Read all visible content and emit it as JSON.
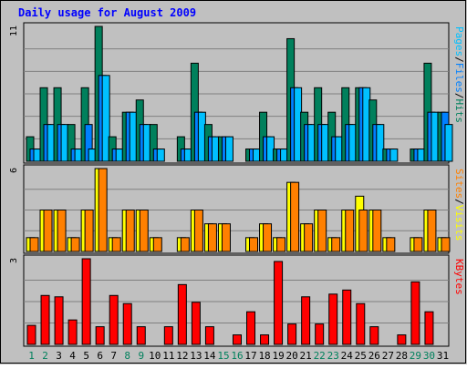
{
  "chart_data": {
    "type": "bar",
    "title": "Daily usage for August 2009",
    "x_tick_labels": [
      "1",
      "2",
      "3",
      "4",
      "5",
      "6",
      "7",
      "8",
      "9",
      "10",
      "11",
      "12",
      "13",
      "14",
      "15",
      "16",
      "17",
      "18",
      "19",
      "20",
      "21",
      "22",
      "23",
      "24",
      "25",
      "26",
      "27",
      "28",
      "29",
      "30",
      "31"
    ],
    "weekend_days": [
      1,
      2,
      8,
      9,
      15,
      16,
      22,
      23,
      29,
      30
    ],
    "colors": {
      "title": "#0000ff",
      "background": "#c0c0c0",
      "grid": "#808080",
      "hits": "#00805c",
      "files": "#0080ff",
      "pages": "#00c0ff",
      "visits": "#ffff00",
      "sites": "#ff8000",
      "kbytes": "#ff0000",
      "weekday_label": "#000000",
      "weekend_label": "#00805c"
    },
    "panels": [
      {
        "name": "hits-files-pages",
        "ymax_label": "11",
        "ylim": [
          0,
          11
        ],
        "legend": [
          "Pages",
          "Files",
          "Hits"
        ],
        "series": [
          {
            "name": "Hits",
            "values": [
              2,
              6,
              6,
              3,
              6,
              11,
              2,
              4,
              5,
              3,
              0,
              2,
              8,
              3,
              2,
              0,
              1,
              4,
              1,
              10,
              4,
              6,
              4,
              6,
              6,
              5,
              1,
              0,
              1,
              8,
              4
            ]
          },
          {
            "name": "Files",
            "values": [
              1,
              3,
              3,
              1,
              3,
              7,
              1,
              4,
              3,
              1,
              0,
              1,
              4,
              2,
              2,
              0,
              1,
              2,
              1,
              6,
              3,
              3,
              2,
              3,
              6,
              3,
              1,
              0,
              1,
              4,
              4
            ]
          },
          {
            "name": "Pages",
            "values": [
              1,
              3,
              3,
              1,
              1,
              7,
              1,
              4,
              3,
              1,
              0,
              1,
              4,
              2,
              2,
              0,
              1,
              2,
              1,
              6,
              3,
              3,
              2,
              3,
              6,
              3,
              1,
              0,
              1,
              4,
              3
            ]
          }
        ]
      },
      {
        "name": "visits-sites",
        "ymax_label": "6",
        "ylim": [
          0,
          6
        ],
        "legend": [
          "Sites",
          "Visits"
        ],
        "series": [
          {
            "name": "Visits",
            "values": [
              1,
              3,
              3,
              1,
              3,
              6,
              1,
              3,
              3,
              1,
              0,
              1,
              3,
              2,
              2,
              0,
              1,
              2,
              1,
              5,
              2,
              3,
              1,
              3,
              4,
              3,
              1,
              0,
              1,
              3,
              1
            ]
          },
          {
            "name": "Sites",
            "values": [
              1,
              3,
              3,
              1,
              3,
              6,
              1,
              3,
              3,
              1,
              0,
              1,
              3,
              2,
              2,
              0,
              1,
              2,
              1,
              5,
              2,
              3,
              1,
              3,
              3,
              3,
              1,
              0,
              1,
              3,
              1
            ]
          }
        ]
      },
      {
        "name": "kbytes",
        "ymax_label": "3",
        "ylim": [
          0,
          3.15
        ],
        "legend": [
          "KBytes"
        ],
        "series": [
          {
            "name": "KBytes",
            "values": [
              0.7,
              1.8,
              1.75,
              0.9,
              3.15,
              0.65,
              1.8,
              1.5,
              0.65,
              0,
              0.65,
              2.2,
              1.55,
              0.65,
              0,
              0.35,
              1.2,
              0.35,
              3.05,
              0.75,
              1.75,
              0.75,
              1.85,
              2.0,
              1.5,
              0.65,
              0,
              0.35,
              2.3,
              1.2,
              0
            ]
          }
        ]
      }
    ]
  }
}
